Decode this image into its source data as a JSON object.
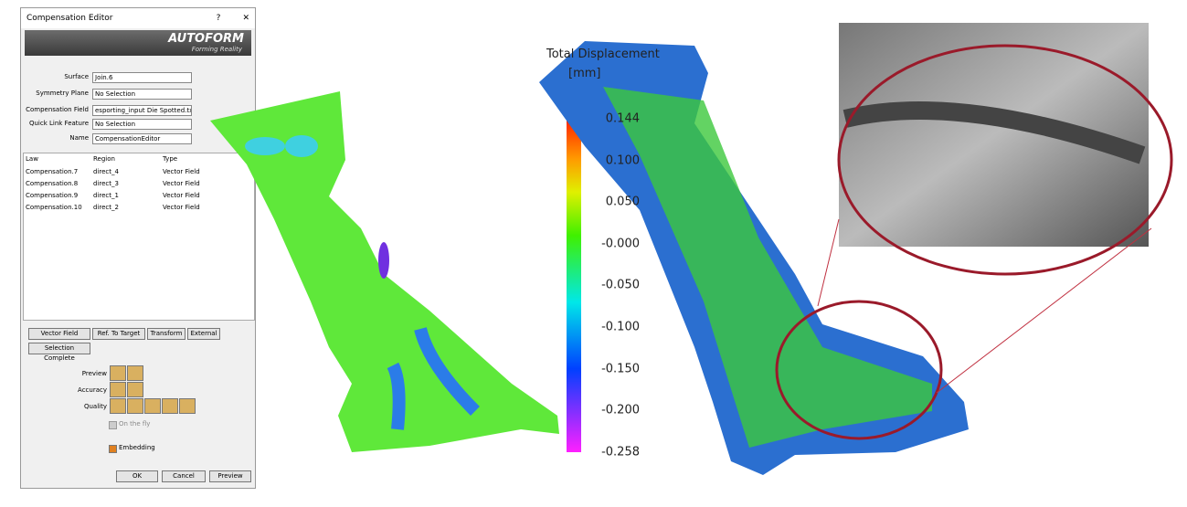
{
  "dialog": {
    "title": "Compensation Editor",
    "help": "?",
    "close": "✕",
    "logo": "AUTOFORM",
    "tagline": "Forming Reality",
    "fields": [
      {
        "label": "Surface",
        "value": "Join.6"
      },
      {
        "label": "Symmetry Plane",
        "value": "No Selection"
      },
      {
        "label": "Compensation Field",
        "value": "esporting_input Die Spotted.txt"
      },
      {
        "label": "Quick Link Feature",
        "value": "No Selection"
      },
      {
        "label": "Name",
        "value": "CompensationEditor"
      }
    ],
    "table": {
      "columns": [
        "Law",
        "Region",
        "Type"
      ],
      "rows": [
        [
          "Compensation.7",
          "direct_4",
          "Vector Field"
        ],
        [
          "Compensation.8",
          "direct_3",
          "Vector Field"
        ],
        [
          "Compensation.9",
          "direct_1",
          "Vector Field"
        ],
        [
          "Compensation.10",
          "direct_2",
          "Vector Field"
        ]
      ]
    },
    "buttons": [
      "Vector Field",
      "Ref. To Target",
      "Transform",
      "External"
    ],
    "selection": "Selection Complete",
    "options": [
      "Preview",
      "Accuracy",
      "Quality"
    ],
    "on_the_fly": "On the fly",
    "embedding": "Embedding",
    "footer": [
      "OK",
      "Cancel",
      "Preview"
    ]
  },
  "legend": {
    "title": "Total Displacement",
    "unit": "[mm]",
    "ticks": [
      "0.144",
      "0.100",
      "0.050",
      "-0.000",
      "-0.050",
      "-0.100",
      "-0.150",
      "-0.200",
      "-0.258"
    ]
  }
}
